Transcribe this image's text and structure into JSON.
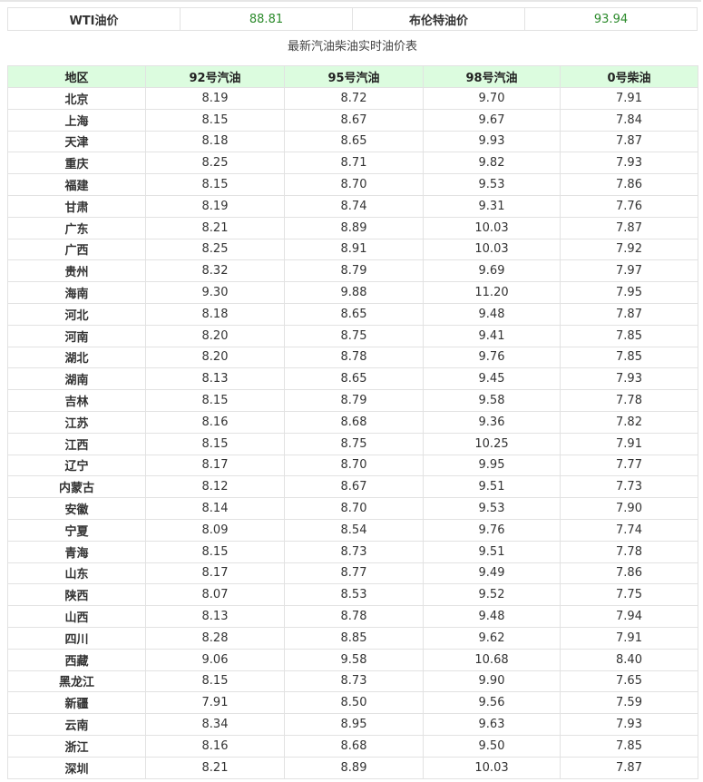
{
  "crude": {
    "wti_label": "WTI油价",
    "wti_value": "88.81",
    "brent_label": "布伦特油价",
    "brent_value": "93.94"
  },
  "caption": "最新汽油柴油实时油价表",
  "columns": [
    "地区",
    "92号汽油",
    "95号汽油",
    "98号汽油",
    "0号柴油"
  ],
  "rows": [
    [
      "北京",
      "8.19",
      "8.72",
      "9.70",
      "7.91"
    ],
    [
      "上海",
      "8.15",
      "8.67",
      "9.67",
      "7.84"
    ],
    [
      "天津",
      "8.18",
      "8.65",
      "9.93",
      "7.87"
    ],
    [
      "重庆",
      "8.25",
      "8.71",
      "9.82",
      "7.93"
    ],
    [
      "福建",
      "8.15",
      "8.70",
      "9.53",
      "7.86"
    ],
    [
      "甘肃",
      "8.19",
      "8.74",
      "9.31",
      "7.76"
    ],
    [
      "广东",
      "8.21",
      "8.89",
      "10.03",
      "7.87"
    ],
    [
      "广西",
      "8.25",
      "8.91",
      "10.03",
      "7.92"
    ],
    [
      "贵州",
      "8.32",
      "8.79",
      "9.69",
      "7.97"
    ],
    [
      "海南",
      "9.30",
      "9.88",
      "11.20",
      "7.95"
    ],
    [
      "河北",
      "8.18",
      "8.65",
      "9.48",
      "7.87"
    ],
    [
      "河南",
      "8.20",
      "8.75",
      "9.41",
      "7.85"
    ],
    [
      "湖北",
      "8.20",
      "8.78",
      "9.76",
      "7.85"
    ],
    [
      "湖南",
      "8.13",
      "8.65",
      "9.45",
      "7.93"
    ],
    [
      "吉林",
      "8.15",
      "8.79",
      "9.58",
      "7.78"
    ],
    [
      "江苏",
      "8.16",
      "8.68",
      "9.36",
      "7.82"
    ],
    [
      "江西",
      "8.15",
      "8.75",
      "10.25",
      "7.91"
    ],
    [
      "辽宁",
      "8.17",
      "8.70",
      "9.95",
      "7.77"
    ],
    [
      "内蒙古",
      "8.12",
      "8.67",
      "9.51",
      "7.73"
    ],
    [
      "安徽",
      "8.14",
      "8.70",
      "9.53",
      "7.90"
    ],
    [
      "宁夏",
      "8.09",
      "8.54",
      "9.76",
      "7.74"
    ],
    [
      "青海",
      "8.15",
      "8.73",
      "9.51",
      "7.78"
    ],
    [
      "山东",
      "8.17",
      "8.77",
      "9.49",
      "7.86"
    ],
    [
      "陕西",
      "8.07",
      "8.53",
      "9.52",
      "7.75"
    ],
    [
      "山西",
      "8.13",
      "8.78",
      "9.48",
      "7.94"
    ],
    [
      "四川",
      "8.28",
      "8.85",
      "9.62",
      "7.91"
    ],
    [
      "西藏",
      "9.06",
      "9.58",
      "10.68",
      "8.40"
    ],
    [
      "黑龙江",
      "8.15",
      "8.73",
      "9.90",
      "7.65"
    ],
    [
      "新疆",
      "7.91",
      "8.50",
      "9.56",
      "7.59"
    ],
    [
      "云南",
      "8.34",
      "8.95",
      "9.63",
      "7.93"
    ],
    [
      "浙江",
      "8.16",
      "8.68",
      "9.50",
      "7.85"
    ],
    [
      "深圳",
      "8.21",
      "8.89",
      "10.03",
      "7.87"
    ]
  ]
}
